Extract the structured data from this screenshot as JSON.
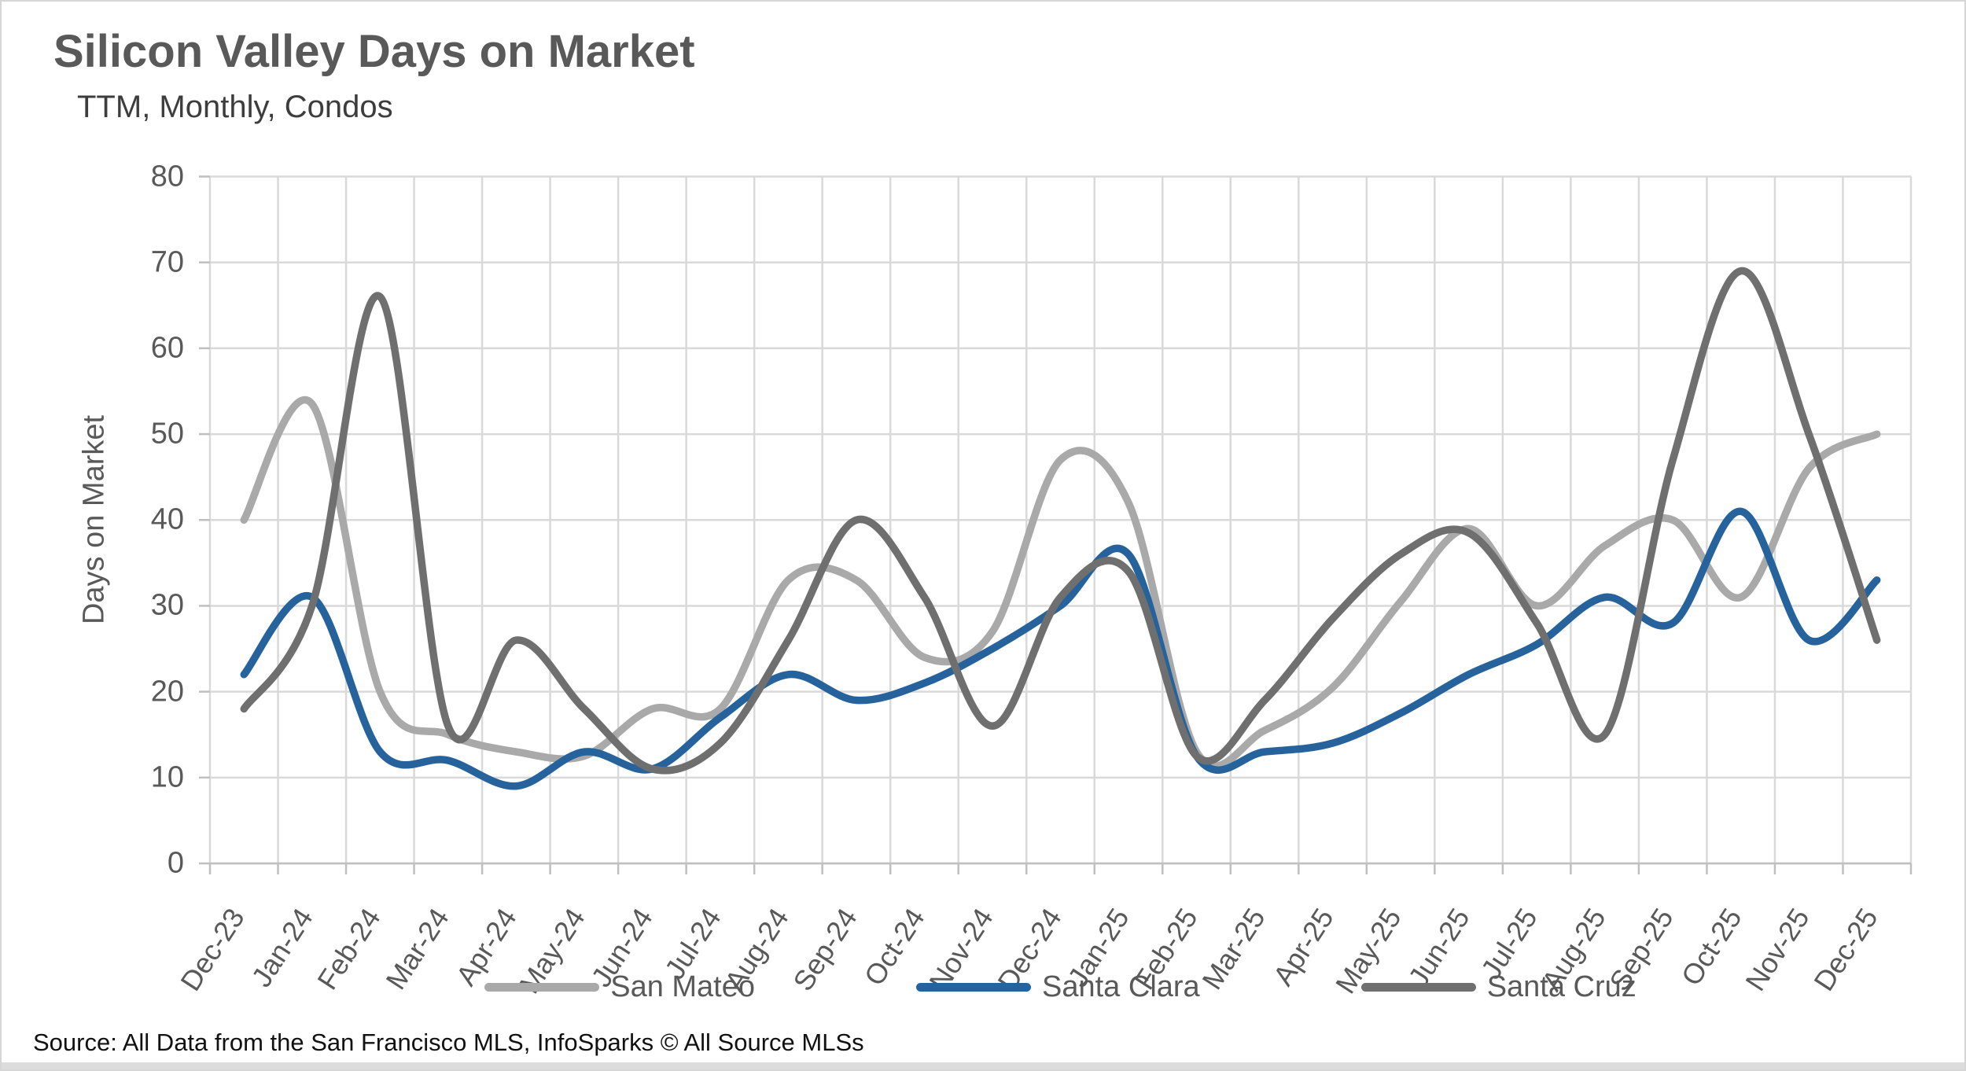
{
  "header": {
    "title": "Silicon Valley Days on Market",
    "subtitle": "TTM, Monthly, Condos"
  },
  "footer": {
    "source": "Source: All Data from the San Francisco MLS, InfoSparks © All Source MLSs"
  },
  "colors": {
    "grid": "#d9d9d9",
    "axis": "#bfbfbf",
    "text": "#595959"
  },
  "chart_data": {
    "type": "line",
    "title": "Silicon Valley Days on Market",
    "subtitle": "TTM, Monthly, Condos",
    "xlabel": "",
    "ylabel": "Days on Market",
    "ylim": [
      0,
      80
    ],
    "ytick_step": 10,
    "grid": true,
    "smooth": true,
    "legend_position": "bottom",
    "categories": [
      "Dec-23",
      "Jan-24",
      "Feb-24",
      "Mar-24",
      "Apr-24",
      "May-24",
      "Jun-24",
      "Jul-24",
      "Aug-24",
      "Sep-24",
      "Oct-24",
      "Nov-24",
      "Dec-24",
      "Jan-25",
      "Feb-25",
      "Mar-25",
      "Apr-25",
      "May-25",
      "Jun-25",
      "Jul-25",
      "Aug-25",
      "Sep-25",
      "Oct-25",
      "Nov-25",
      "Dec-25"
    ],
    "series": [
      {
        "name": "San Mateo",
        "color": "#a9a9a9",
        "values": [
          40,
          53.5,
          20,
          15,
          13,
          12.5,
          18,
          18,
          33,
          33,
          24,
          27,
          47,
          42,
          13,
          15.5,
          20.5,
          30.5,
          39,
          30,
          37,
          40,
          31,
          46,
          50
        ]
      },
      {
        "name": "Santa Clara",
        "color": "#26639c",
        "values": [
          22,
          31,
          13,
          12,
          9,
          13,
          11,
          17,
          22,
          19,
          21,
          25,
          30,
          36,
          12.5,
          13,
          14,
          17.5,
          22,
          25.5,
          31,
          28,
          41,
          26,
          33
        ]
      },
      {
        "name": "Santa Cruz",
        "color": "#6f6f6f",
        "values": [
          18,
          30,
          66,
          16,
          26,
          18,
          11,
          14,
          26,
          40,
          31,
          16,
          31,
          34,
          12.5,
          19,
          28.5,
          36,
          38.5,
          28,
          15,
          47,
          69,
          50,
          26
        ]
      }
    ]
  }
}
